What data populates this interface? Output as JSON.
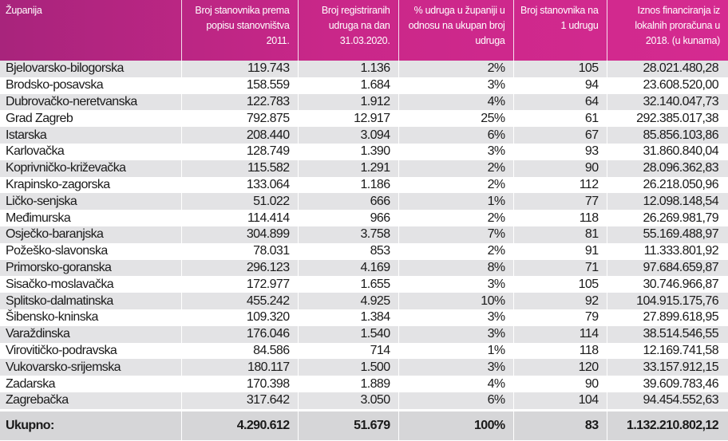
{
  "colors": {
    "header_start": "#a8247c",
    "header_end": "#d52a90",
    "row_alt": "#e3e3e5",
    "total_row": "#d6d6d8"
  },
  "headers": [
    "Županija",
    "Broj stanovnika prema popisu stanovništva 2011.",
    "Broj registriranih udruga na dan 31.03.2020.",
    "% udruga u županiji u odnosu na ukupan broj udruga",
    "Broj stanovnika na 1 udrugu",
    "Iznos financiranja iz lokalnih proračuna u 2018. (u kunama)"
  ],
  "rows": [
    [
      "Bjelovarsko-bilogorska",
      "119.743",
      "1.136",
      "2%",
      "105",
      "28.021.480,28"
    ],
    [
      "Brodsko-posavska",
      "158.559",
      "1.684",
      "3%",
      "94",
      "23.608.520,00"
    ],
    [
      "Dubrovačko-neretvanska",
      "122.783",
      "1.912",
      "4%",
      "64",
      "32.140.047,73"
    ],
    [
      "Grad Zagreb",
      "792.875",
      "12.917",
      "25%",
      "61",
      "292.385.017,38"
    ],
    [
      "Istarska",
      "208.440",
      "3.094",
      "6%",
      "67",
      "85.856.103,86"
    ],
    [
      "Karlovačka",
      "128.749",
      "1.390",
      "3%",
      "93",
      "31.860.840,04"
    ],
    [
      "Koprivničko-križevačka",
      "115.582",
      "1.291",
      "2%",
      "90",
      "28.096.362,83"
    ],
    [
      "Krapinsko-zagorska",
      "133.064",
      "1.186",
      "2%",
      "112",
      "26.218.050,96"
    ],
    [
      "Ličko-senjska",
      "51.022",
      "666",
      "1%",
      "77",
      "12.098.148,54"
    ],
    [
      "Međimurska",
      "114.414",
      "966",
      "2%",
      "118",
      "26.269.981,79"
    ],
    [
      "Osječko-baranjska",
      "304.899",
      "3.758",
      "7%",
      "81",
      "55.169.488,97"
    ],
    [
      "Požeško-slavonska",
      "78.031",
      "853",
      "2%",
      "91",
      "11.333.801,92"
    ],
    [
      "Primorsko-goranska",
      "296.123",
      "4.169",
      "8%",
      "71",
      "97.684.659,87"
    ],
    [
      "Sisačko-moslavačka",
      "172.977",
      "1.655",
      "3%",
      "105",
      "30.746.966,87"
    ],
    [
      "Splitsko-dalmatinska",
      "455.242",
      "4.925",
      "10%",
      "92",
      "104.915.175,76"
    ],
    [
      "Šibensko-kninska",
      "109.320",
      "1.384",
      "3%",
      "79",
      "27.899.618,95"
    ],
    [
      "Varaždinska",
      "176.046",
      "1.540",
      "3%",
      "114",
      "38.514.546,55"
    ],
    [
      "Virovitičko-podravska",
      "84.586",
      "714",
      "1%",
      "118",
      "12.169.741,58"
    ],
    [
      "Vukovarsko-srijemska",
      "180.117",
      "1.500",
      "3%",
      "120",
      "33.157.912,15"
    ],
    [
      "Zadarska",
      "170.398",
      "1.889",
      "4%",
      "90",
      "39.609.783,46"
    ],
    [
      "Zagrebačka",
      "317.642",
      "3.050",
      "6%",
      "104",
      "94.454.552,63"
    ]
  ],
  "total": [
    "Ukupno:",
    "4.290.612",
    "51.679",
    "100%",
    "83",
    "1.132.210.802,12"
  ]
}
